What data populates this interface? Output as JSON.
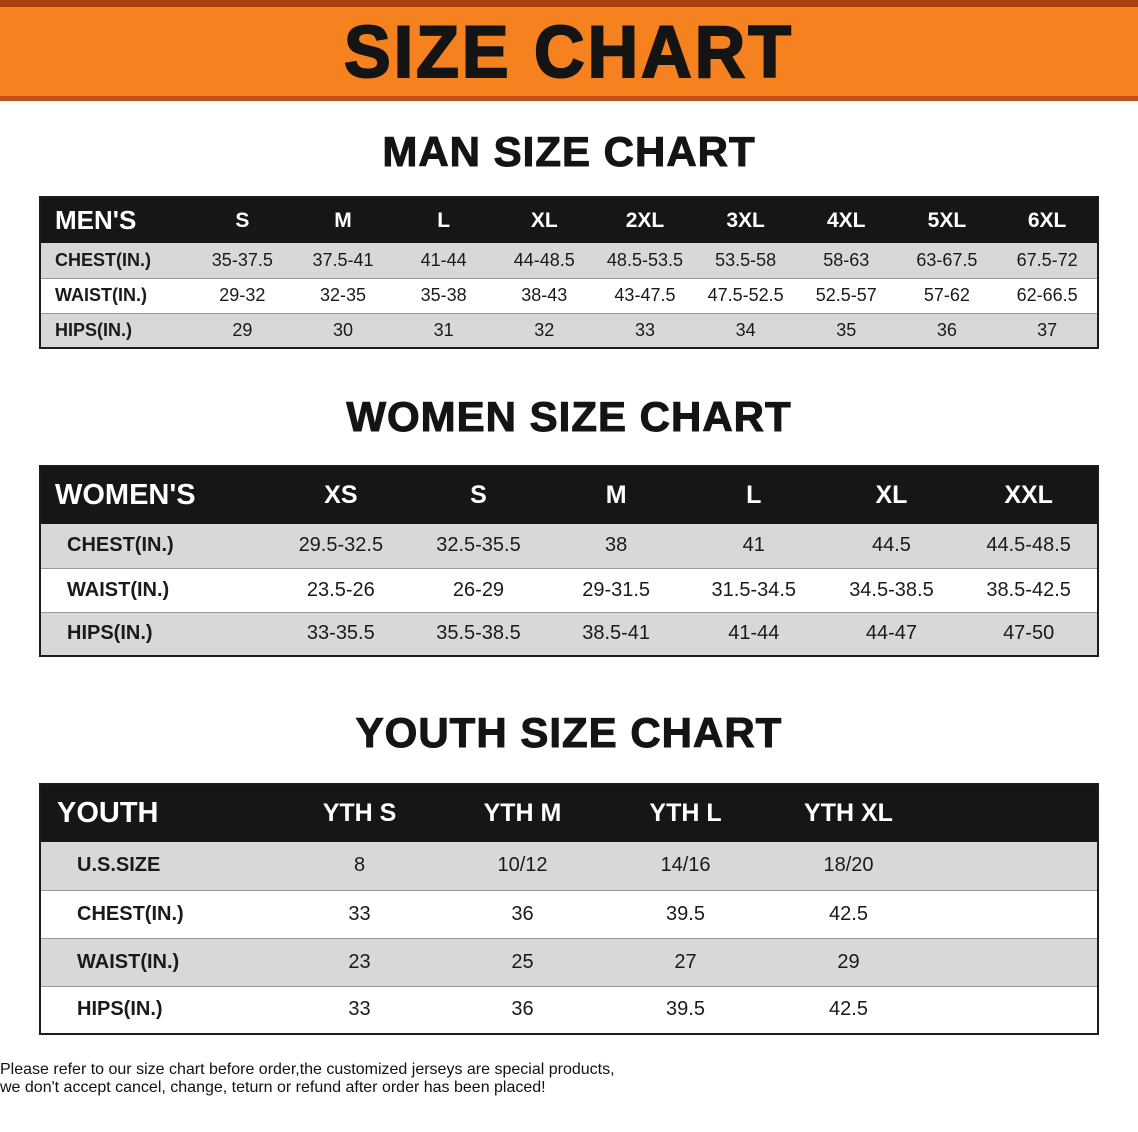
{
  "banner": {
    "title": "SIZE CHART",
    "bg": "#f6821f"
  },
  "sections": [
    {
      "heading": "MAN SIZE CHART",
      "table": {
        "header": [
          "MEN'S",
          "S",
          "M",
          "L",
          "XL",
          "2XL",
          "3XL",
          "4XL",
          "5XL",
          "6XL"
        ],
        "rows": [
          [
            "CHEST(IN.)",
            "35-37.5",
            "37.5-41",
            "41-44",
            "44-48.5",
            "48.5-53.5",
            "53.5-58",
            "58-63",
            "63-67.5",
            "67.5-72"
          ],
          [
            "WAIST(IN.)",
            "29-32",
            "32-35",
            "35-38",
            "38-43",
            "43-47.5",
            "47.5-52.5",
            "52.5-57",
            "57-62",
            "62-66.5"
          ],
          [
            "HIPS(IN.)",
            "29",
            "30",
            "31",
            "32",
            "33",
            "34",
            "35",
            "36",
            "37"
          ]
        ]
      }
    },
    {
      "heading": "WOMEN SIZE CHART",
      "table": {
        "header": [
          "WOMEN'S",
          "XS",
          "S",
          "M",
          "L",
          "XL",
          "XXL"
        ],
        "rows": [
          [
            "CHEST(IN.)",
            "29.5-32.5",
            "32.5-35.5",
            "38",
            "41",
            "44.5",
            "44.5-48.5"
          ],
          [
            "WAIST(IN.)",
            "23.5-26",
            "26-29",
            "29-31.5",
            "31.5-34.5",
            "34.5-38.5",
            "38.5-42.5"
          ],
          [
            "HIPS(IN.)",
            "33-35.5",
            "35.5-38.5",
            "38.5-41",
            "41-44",
            "44-47",
            "47-50"
          ]
        ]
      }
    },
    {
      "heading": "YOUTH SIZE CHART",
      "table": {
        "header": [
          "YOUTH",
          "YTH S",
          "YTH M",
          "YTH L",
          "YTH XL"
        ],
        "rows": [
          [
            "U.S.SIZE",
            "8",
            "10/12",
            "14/16",
            "18/20"
          ],
          [
            "CHEST(IN.)",
            "33",
            "36",
            "39.5",
            "42.5"
          ],
          [
            "WAIST(IN.)",
            "23",
            "25",
            "27",
            "29"
          ],
          [
            "HIPS(IN.)",
            "33",
            "36",
            "39.5",
            "42.5"
          ]
        ]
      }
    }
  ],
  "footer": {
    "color": "#c1272d",
    "line1": "Please refer to our size chart before order,the customized jerseys are special products,",
    "line2": "we don't accept cancel, change, teturn or refund after order has been placed!"
  }
}
